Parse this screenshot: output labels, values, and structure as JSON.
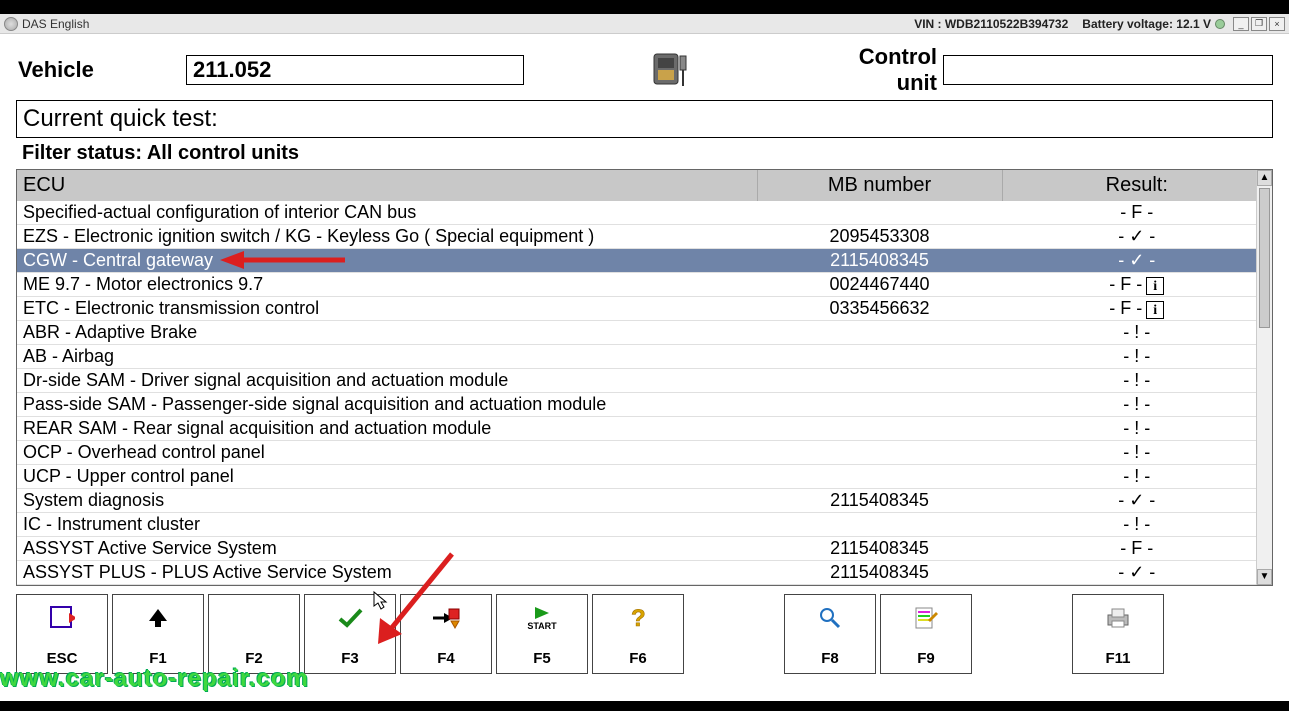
{
  "titlebar": {
    "app_name": "DAS English",
    "vin_label": "VIN : WDB2110522B394732",
    "battery_label": "Battery voltage: 12.1 V"
  },
  "header": {
    "vehicle_label": "Vehicle",
    "vehicle_value": "211.052",
    "control_unit_label": "Control unit",
    "control_unit_value": ""
  },
  "section": {
    "title": "Current quick test:",
    "filter": "Filter status: All control units"
  },
  "table": {
    "columns": {
      "ecu": "ECU",
      "mb": "MB number",
      "res": "Result:"
    },
    "rows": [
      {
        "ecu": "Specified-actual configuration of interior CAN bus",
        "mb": "",
        "res": "- F -",
        "info": false,
        "selected": false
      },
      {
        "ecu": "EZS - Electronic ignition switch / KG - Keyless Go ( Special equipment )",
        "mb": "2095453308",
        "res": "- ✓ -",
        "info": false,
        "selected": false
      },
      {
        "ecu": "CGW - Central gateway",
        "mb": "2115408345",
        "res": "- ✓ -",
        "info": false,
        "selected": true
      },
      {
        "ecu": "ME 9.7 - Motor electronics 9.7",
        "mb": "0024467440",
        "res": "- F -",
        "info": true,
        "selected": false
      },
      {
        "ecu": "ETC - Electronic transmission control",
        "mb": "0335456632",
        "res": "- F -",
        "info": true,
        "selected": false
      },
      {
        "ecu": "ABR - Adaptive Brake",
        "mb": "",
        "res": "- ! -",
        "info": false,
        "selected": false
      },
      {
        "ecu": "AB - Airbag",
        "mb": "",
        "res": "- ! -",
        "info": false,
        "selected": false
      },
      {
        "ecu": "Dr-side SAM - Driver signal acquisition and actuation module",
        "mb": "",
        "res": "- ! -",
        "info": false,
        "selected": false
      },
      {
        "ecu": "Pass-side SAM - Passenger-side signal acquisition and actuation module",
        "mb": "",
        "res": "- ! -",
        "info": false,
        "selected": false
      },
      {
        "ecu": "REAR SAM - Rear signal acquisition and actuation module",
        "mb": "",
        "res": "- ! -",
        "info": false,
        "selected": false
      },
      {
        "ecu": "OCP - Overhead control panel",
        "mb": "",
        "res": "- ! -",
        "info": false,
        "selected": false
      },
      {
        "ecu": "UCP - Upper control panel",
        "mb": "",
        "res": "- ! -",
        "info": false,
        "selected": false
      },
      {
        "ecu": "System diagnosis",
        "mb": "2115408345",
        "res": "- ✓ -",
        "info": false,
        "selected": false
      },
      {
        "ecu": "IC - Instrument cluster",
        "mb": "",
        "res": "- ! -",
        "info": false,
        "selected": false
      },
      {
        "ecu": "ASSYST Active Service System",
        "mb": "2115408345",
        "res": "- F -",
        "info": false,
        "selected": false
      },
      {
        "ecu": "ASSYST PLUS - PLUS Active Service System",
        "mb": "2115408345",
        "res": "- ✓ -",
        "info": false,
        "selected": false
      }
    ]
  },
  "fkeys": {
    "esc": "ESC",
    "f1": "F1",
    "f2": "F2",
    "f3": "F3",
    "f4": "F4",
    "f5": "F5",
    "f6": "F6",
    "f8": "F8",
    "f9": "F9",
    "f11": "F11",
    "start_text": "START"
  },
  "watermark": "www.car-auto-repair.com",
  "colors": {
    "selected_row_bg": "#6f84a8",
    "header_bg": "#c8c8c8",
    "arrow": "#db1f1f",
    "watermark": "#3fd83f"
  }
}
